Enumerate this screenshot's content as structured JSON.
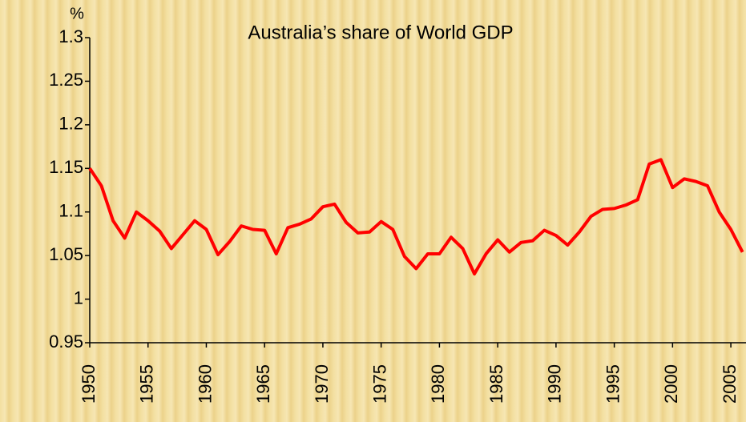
{
  "chart_data": {
    "type": "line",
    "title": "Australia’s share of World GDP",
    "y_unit": "%",
    "x": [
      1950,
      1951,
      1952,
      1953,
      1954,
      1955,
      1956,
      1957,
      1958,
      1959,
      1960,
      1961,
      1962,
      1963,
      1964,
      1965,
      1966,
      1967,
      1968,
      1969,
      1970,
      1971,
      1972,
      1973,
      1974,
      1975,
      1976,
      1977,
      1978,
      1979,
      1980,
      1981,
      1982,
      1983,
      1984,
      1985,
      1986,
      1987,
      1988,
      1989,
      1990,
      1991,
      1992,
      1993,
      1994,
      1995,
      1996,
      1997,
      1998,
      1999,
      2000,
      2001,
      2002,
      2003,
      2004,
      2005,
      2006
    ],
    "series": [
      {
        "name": "Australia",
        "color": "#ff0000",
        "values": [
          1.15,
          1.13,
          1.09,
          1.07,
          1.1,
          1.09,
          1.078,
          1.058,
          1.074,
          1.09,
          1.08,
          1.051,
          1.066,
          1.084,
          1.08,
          1.079,
          1.052,
          1.082,
          1.086,
          1.092,
          1.106,
          1.109,
          1.088,
          1.076,
          1.077,
          1.089,
          1.08,
          1.049,
          1.035,
          1.052,
          1.052,
          1.071,
          1.058,
          1.029,
          1.052,
          1.068,
          1.054,
          1.065,
          1.067,
          1.079,
          1.073,
          1.062,
          1.077,
          1.095,
          1.103,
          1.104,
          1.108,
          1.114,
          1.155,
          1.16,
          1.128,
          1.138,
          1.135,
          1.13,
          1.1,
          1.08,
          1.054
        ]
      }
    ],
    "xlim": [
      1950,
      2006.3
    ],
    "xticks": [
      1950,
      1955,
      1960,
      1965,
      1970,
      1975,
      1980,
      1985,
      1990,
      1995,
      2000,
      2005
    ],
    "ylim": [
      0.95,
      1.3
    ],
    "yticks": [
      0.95,
      1,
      1.05,
      1.1,
      1.15,
      1.2,
      1.25,
      1.3
    ]
  }
}
